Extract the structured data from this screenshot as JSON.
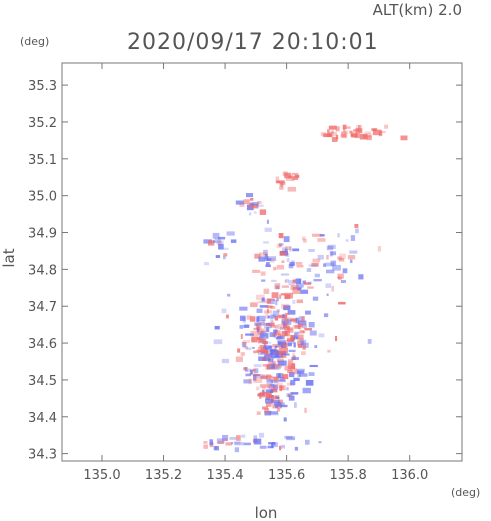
{
  "header": {
    "altitude_label": "ALT(km) 2.0",
    "timestamp": "2020/09/17 20:10:01"
  },
  "chart_data": {
    "type": "scatter",
    "xlabel": "lon",
    "ylabel": "lat",
    "x_unit": "(deg)",
    "y_unit": "(deg)",
    "xlim": [
      134.87,
      136.17
    ],
    "ylim": [
      34.28,
      35.36
    ],
    "xticks": [
      "135.0",
      "135.2",
      "135.4",
      "135.6",
      "135.8",
      "136.0"
    ],
    "yticks": [
      "34.3",
      "34.4",
      "34.5",
      "34.6",
      "34.7",
      "34.8",
      "34.9",
      "35.0",
      "35.1",
      "35.2",
      "35.3"
    ],
    "grid": false,
    "colors": {
      "positive": "#f06a6a",
      "negative": "#6a72f0",
      "frame": "#777777"
    },
    "clusters": [
      {
        "lon": 135.8,
        "lat": 35.17,
        "spread_lon": 0.06,
        "spread_lat": 0.01,
        "n": 40,
        "bias": 0.95
      },
      {
        "lon": 135.61,
        "lat": 35.05,
        "spread_lon": 0.02,
        "spread_lat": 0.012,
        "n": 18,
        "bias": 0.95
      },
      {
        "lon": 135.49,
        "lat": 34.97,
        "spread_lon": 0.03,
        "spread_lat": 0.012,
        "n": 14,
        "bias": 0.5
      },
      {
        "lon": 135.39,
        "lat": 34.86,
        "spread_lon": 0.03,
        "spread_lat": 0.025,
        "n": 16,
        "bias": 0.2
      },
      {
        "lon": 135.56,
        "lat": 34.83,
        "spread_lon": 0.05,
        "spread_lat": 0.03,
        "n": 30,
        "bias": 0.3
      },
      {
        "lon": 135.72,
        "lat": 34.84,
        "spread_lon": 0.08,
        "spread_lat": 0.04,
        "n": 45,
        "bias": 0.45
      },
      {
        "lon": 135.62,
        "lat": 34.76,
        "spread_lon": 0.05,
        "spread_lat": 0.03,
        "n": 30,
        "bias": 0.5
      },
      {
        "lon": 135.57,
        "lat": 34.65,
        "spread_lon": 0.07,
        "spread_lat": 0.05,
        "n": 150,
        "bias": 0.55
      },
      {
        "lon": 135.56,
        "lat": 34.55,
        "spread_lon": 0.05,
        "spread_lat": 0.05,
        "n": 140,
        "bias": 0.4
      },
      {
        "lon": 135.57,
        "lat": 34.46,
        "spread_lon": 0.04,
        "spread_lat": 0.03,
        "n": 60,
        "bias": 0.45
      },
      {
        "lon": 135.52,
        "lat": 34.33,
        "spread_lon": 0.1,
        "spread_lat": 0.01,
        "n": 30,
        "bias": 0.35
      },
      {
        "lon": 135.35,
        "lat": 34.32,
        "spread_lon": 0.01,
        "spread_lat": 0.006,
        "n": 6,
        "bias": 0.6
      }
    ]
  }
}
